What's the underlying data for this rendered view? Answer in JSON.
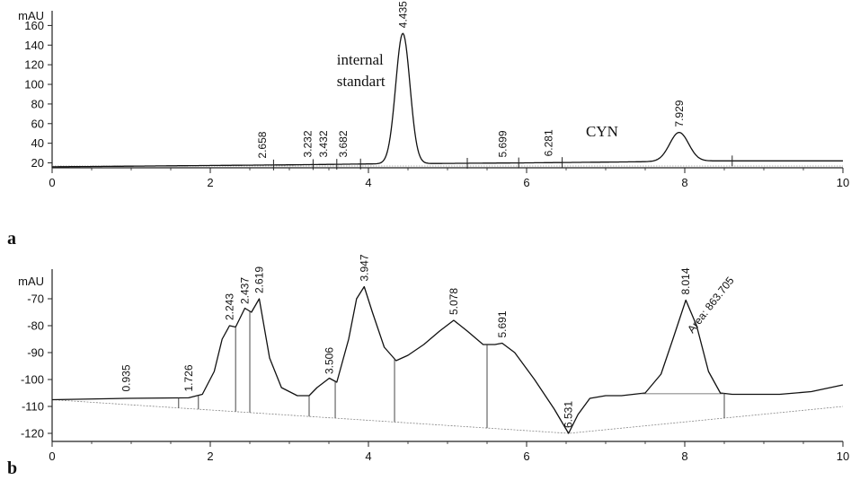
{
  "chart_data": [
    {
      "type": "line",
      "panel_label": "a",
      "ylabel": "mAU",
      "xlim": [
        0,
        10
      ],
      "ylim": [
        15,
        175
      ],
      "x_ticks": [
        "0",
        "2",
        "4",
        "6",
        "8",
        "10"
      ],
      "y_ticks": [
        "20",
        "40",
        "60",
        "80",
        "100",
        "120",
        "140",
        "160"
      ],
      "grid": false,
      "baseline": {
        "x": [
          0.0,
          3.0,
          4.1,
          6.0,
          7.3,
          8.3,
          10.0
        ],
        "y": [
          16,
          18,
          19,
          20,
          21,
          22,
          22
        ]
      },
      "peaks": [
        {
          "rt": 4.435,
          "label": "4.435",
          "height": 152,
          "width": 0.09
        },
        {
          "rt": 7.929,
          "label": "7.929",
          "height": 51,
          "width": 0.12
        }
      ],
      "rt_labels": [
        {
          "rt": 2.658,
          "label": "2.658",
          "y": 19
        },
        {
          "rt": 3.232,
          "label": "3.232",
          "y": 20
        },
        {
          "rt": 3.432,
          "label": "3.432",
          "y": 20
        },
        {
          "rt": 3.682,
          "label": "3.682",
          "y": 20
        },
        {
          "rt": 4.435,
          "label": "4.435",
          "y": 152
        },
        {
          "rt": 5.699,
          "label": "5.699",
          "y": 20
        },
        {
          "rt": 6.281,
          "label": "6.281",
          "y": 21
        },
        {
          "rt": 7.929,
          "label": "7.929",
          "y": 51
        }
      ],
      "integration_marks": [
        2.8,
        3.3,
        3.6,
        3.9,
        5.25,
        5.9,
        6.45,
        8.6
      ],
      "annotations": [
        {
          "text": "internal",
          "x": 3.6,
          "y": 120
        },
        {
          "text": "standart",
          "x": 3.6,
          "y": 98
        },
        {
          "text": "CYN",
          "x": 6.75,
          "y": 47
        }
      ]
    },
    {
      "type": "line",
      "panel_label": "b",
      "ylabel": "mAU",
      "xlim": [
        0,
        10
      ],
      "ylim": [
        -123,
        -59
      ],
      "x_ticks": [
        "0",
        "2",
        "4",
        "6",
        "8",
        "10"
      ],
      "y_ticks": [
        "-120",
        "-110",
        "-100",
        "-90",
        "-80",
        "-70"
      ],
      "grid": false,
      "trace": {
        "x": [
          0.0,
          0.935,
          1.726,
          1.9,
          2.05,
          2.15,
          2.243,
          2.32,
          2.437,
          2.52,
          2.619,
          2.75,
          2.9,
          3.1,
          3.25,
          3.35,
          3.506,
          3.6,
          3.75,
          3.85,
          3.947,
          4.05,
          4.2,
          4.35,
          4.5,
          4.7,
          4.9,
          5.078,
          5.25,
          5.45,
          5.6,
          5.691,
          5.85,
          6.1,
          6.35,
          6.531,
          6.65,
          6.8,
          7.0,
          7.2,
          7.5,
          7.7,
          7.85,
          8.014,
          8.15,
          8.3,
          8.45,
          8.6,
          8.8,
          9.2,
          9.6,
          10.0
        ],
        "y": [
          -107.5,
          -107.0,
          -106.8,
          -105.5,
          -97.0,
          -85.0,
          -80.0,
          -80.5,
          -73.5,
          -75.0,
          -70.0,
          -92.0,
          -103.0,
          -106.0,
          -106.0,
          -103.0,
          -99.5,
          -101.0,
          -85.0,
          -70.0,
          -65.5,
          -75.0,
          -88.0,
          -93.0,
          -91.0,
          -87.0,
          -82.0,
          -78.0,
          -82.0,
          -87.0,
          -87.0,
          -86.5,
          -90.0,
          -100.0,
          -111.0,
          -120.0,
          -113.0,
          -107.0,
          -106.0,
          -106.0,
          -105.0,
          -98.0,
          -85.0,
          -70.5,
          -80.0,
          -97.0,
          -105.0,
          -105.5,
          -105.5,
          -105.5,
          -104.5,
          -102.0
        ]
      },
      "baseline": {
        "x": [
          0.0,
          6.531,
          10.0
        ],
        "y": [
          -107.5,
          -120.0,
          -110.0
        ]
      },
      "rt_labels": [
        {
          "rt": 0.935,
          "label": "0.935",
          "y": -106.5
        },
        {
          "rt": 1.726,
          "label": "1.726",
          "y": -106.5
        },
        {
          "rt": 2.243,
          "label": "2.243",
          "y": -80.0
        },
        {
          "rt": 2.437,
          "label": "2.437",
          "y": -74.0
        },
        {
          "rt": 2.619,
          "label": "2.619",
          "y": -70.0
        },
        {
          "rt": 3.506,
          "label": "3.506",
          "y": -100.0
        },
        {
          "rt": 3.947,
          "label": "3.947",
          "y": -65.5
        },
        {
          "rt": 5.078,
          "label": "5.078",
          "y": -78.0
        },
        {
          "rt": 5.691,
          "label": "5.691",
          "y": -86.5
        },
        {
          "rt": 6.531,
          "label": "6.531",
          "y": -120.0
        },
        {
          "rt": 8.014,
          "label": "8.014",
          "y": -70.5
        }
      ],
      "drop_lines": [
        1.6,
        1.85,
        2.32,
        2.5,
        3.25,
        3.58,
        4.33,
        5.5,
        6.531,
        8.5
      ],
      "annotations": [
        {
          "text": "Area: 863.705",
          "x": 8.1,
          "y": -83,
          "rotated": true
        }
      ]
    }
  ]
}
